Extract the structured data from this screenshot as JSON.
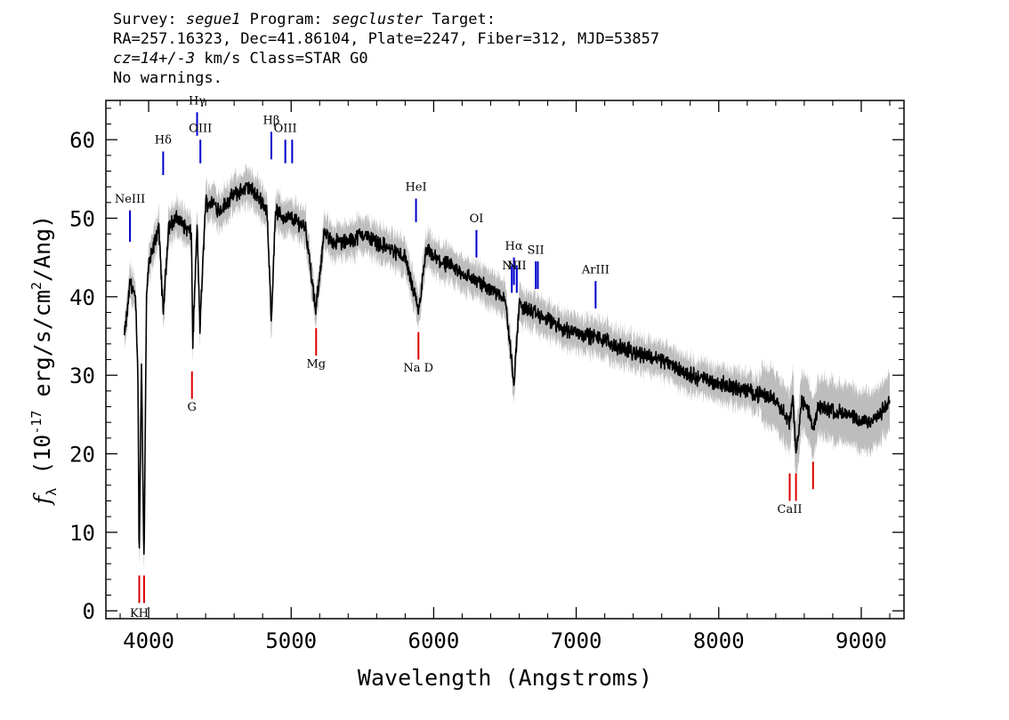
{
  "header": {
    "survey_label": "Survey:",
    "survey": "segue1",
    "program_label": "Program:",
    "program": "segcluster",
    "target_label": "Target:",
    "line2": "RA=257.16323, Dec=41.86104, Plate=2247, Fiber=312, MJD=53857",
    "cz": "cz=14+/-3",
    "cz_rest": " km/s Class=STAR G0",
    "line4": "No warnings."
  },
  "chart_data": {
    "type": "line",
    "xlabel": "Wavelength (Angstroms)",
    "ylabel_main": "f",
    "ylabel_sub": "λ",
    "ylabel_rest": " (10",
    "ylabel_exp": "-17",
    "ylabel_rest2": " erg/s/cm",
    "ylabel_exp2": "2",
    "ylabel_rest3": "/Ang)",
    "xlim": [
      3700,
      9300
    ],
    "ylim": [
      -1,
      65
    ],
    "x_ticks": [
      4000,
      5000,
      6000,
      7000,
      8000,
      9000
    ],
    "x_tick_labels": [
      "4000",
      "5000",
      "6000",
      "7000",
      "8000",
      "9000"
    ],
    "y_ticks": [
      0,
      10,
      20,
      30,
      40,
      50,
      60
    ],
    "y_tick_labels": [
      "0",
      "10",
      "20",
      "30",
      "40",
      "50",
      "60"
    ],
    "colors": {
      "spectrum": "#000000",
      "error_band": "#bdbdbd",
      "emission": "#0000cc",
      "absorption": "#dd0000",
      "frame": "#000000"
    },
    "series": [
      {
        "wavelength": [
          3830,
          3850,
          3870,
          3890,
          3910,
          3925,
          3934,
          3950,
          3968,
          3985,
          4000,
          4030,
          4070,
          4102,
          4140,
          4200,
          4250,
          4300,
          4310,
          4340,
          4360,
          4400,
          4450,
          4500,
          4600,
          4700,
          4800,
          4830,
          4861,
          4890,
          4950,
          5000,
          5100,
          5172,
          5230,
          5300,
          5400,
          5500,
          5600,
          5700,
          5800,
          5893,
          5950,
          6000,
          6100,
          6200,
          6300,
          6400,
          6500,
          6563,
          6600,
          6700,
          6800,
          6900,
          7000,
          7100,
          7200,
          7300,
          7400,
          7500,
          7600,
          7700,
          7800,
          7900,
          8000,
          8100,
          8200,
          8300,
          8400,
          8498,
          8520,
          8542,
          8580,
          8620,
          8662,
          8700,
          8800,
          8900,
          9000,
          9100,
          9200
        ],
        "flux": [
          35,
          38,
          42,
          41,
          39,
          30,
          6,
          32,
          6,
          40,
          44,
          46,
          49,
          38,
          49,
          50,
          49,
          48,
          34,
          49,
          36,
          52,
          52,
          51,
          53,
          54,
          52,
          51,
          37,
          51,
          50,
          50,
          49,
          38,
          48,
          47,
          47,
          48,
          47,
          46,
          45,
          38,
          46,
          45,
          44,
          43,
          42,
          41,
          40,
          29,
          39,
          38,
          37,
          36,
          35.5,
          35,
          34.5,
          33.5,
          33,
          32.5,
          32,
          31,
          30,
          29.5,
          29,
          28.5,
          28,
          27.5,
          27,
          24,
          27,
          20,
          26.5,
          26,
          23,
          26,
          25.5,
          25,
          24,
          24.5,
          26.5
        ]
      }
    ],
    "emission_lines": [
      {
        "label": "NeIII",
        "wavelength": 3869,
        "y_bottom": 47,
        "y_top": 51,
        "label_y": 52
      },
      {
        "label": "Hδ",
        "wavelength": 4102,
        "y_bottom": 55.5,
        "y_top": 58.5,
        "label_y": 59.5
      },
      {
        "label": "Hγ",
        "wavelength": 4340,
        "y_bottom": 60.5,
        "y_top": 63.5,
        "label_y": 64.5
      },
      {
        "label": "OIII",
        "wavelength": 4363,
        "y_bottom": 57,
        "y_top": 60,
        "label_y": 61
      },
      {
        "label": "Hβ",
        "wavelength": 4861,
        "y_bottom": 57.5,
        "y_top": 61,
        "label_y": 62
      },
      {
        "label": "OIII",
        "wavelength": 4959,
        "y_bottom": 57,
        "y_top": 60,
        "label_y": 61
      },
      {
        "label": "",
        "wavelength": 5007,
        "y_bottom": 57,
        "y_top": 60,
        "label_y": 0
      },
      {
        "label": "HeI",
        "wavelength": 5876,
        "y_bottom": 49.5,
        "y_top": 52.5,
        "label_y": 53.5
      },
      {
        "label": "OI",
        "wavelength": 6300,
        "y_bottom": 45,
        "y_top": 48.5,
        "label_y": 49.5
      },
      {
        "label": "NII",
        "wavelength": 6548,
        "y_bottom": 40.5,
        "y_top": 44,
        "label_y": 43.5
      },
      {
        "label": "Hα",
        "wavelength": 6563,
        "y_bottom": 41.5,
        "y_top": 45,
        "label_y": 46
      },
      {
        "label": "NII",
        "wavelength": 6583,
        "y_bottom": 40.5,
        "y_top": 44,
        "label_y": 43.5
      },
      {
        "label": "SII",
        "wavelength": 6716,
        "y_bottom": 41,
        "y_top": 44.5,
        "label_y": 45.5
      },
      {
        "label": "",
        "wavelength": 6731,
        "y_bottom": 41,
        "y_top": 44.5,
        "label_y": 0
      },
      {
        "label": "ArIII",
        "wavelength": 7136,
        "y_bottom": 38.5,
        "y_top": 42,
        "label_y": 43
      }
    ],
    "absorption_lines": [
      {
        "label": "KH",
        "wavelength": 3934,
        "y_bottom": 1,
        "y_top": 4.5,
        "label_y": -0.8
      },
      {
        "label": "",
        "wavelength": 3968,
        "y_bottom": 1,
        "y_top": 4.5,
        "label_y": 0
      },
      {
        "label": "G",
        "wavelength": 4304,
        "y_bottom": 27,
        "y_top": 30.5,
        "label_y": 25.5
      },
      {
        "label": "Mg",
        "wavelength": 5175,
        "y_bottom": 32.5,
        "y_top": 36,
        "label_y": 31
      },
      {
        "label": "Na D",
        "wavelength": 5893,
        "y_bottom": 32,
        "y_top": 35.5,
        "label_y": 30.5
      },
      {
        "label": "CaII",
        "wavelength": 8498,
        "y_bottom": 14,
        "y_top": 17.5,
        "label_y": 12.5
      },
      {
        "label": "",
        "wavelength": 8542,
        "y_bottom": 14,
        "y_top": 17.5,
        "label_y": 0
      },
      {
        "label": "",
        "wavelength": 8662,
        "y_bottom": 15.5,
        "y_top": 19,
        "label_y": 0
      }
    ]
  }
}
